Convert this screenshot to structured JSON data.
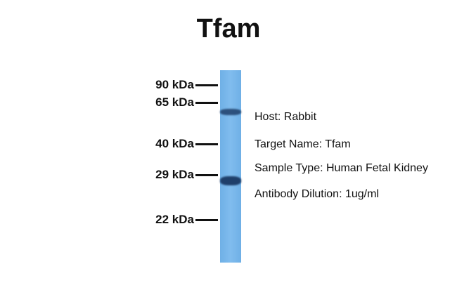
{
  "title": "Tfam",
  "markers": [
    "90 kDa",
    "65 kDa",
    "40 kDa",
    "29 kDa",
    "22 kDa"
  ],
  "lane_color": "#78b6ea",
  "band_color": "#1f3f6a",
  "info": {
    "host": "Host: Rabbit",
    "target": "Target Name: Tfam",
    "sample": "Sample Type: Human Fetal Kidney",
    "dilution": "Antibody Dilution: 1ug/ml"
  }
}
